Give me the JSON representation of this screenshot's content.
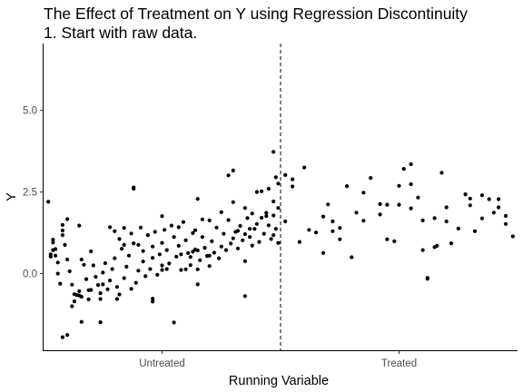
{
  "chart_data": {
    "type": "scatter",
    "title": "The Effect of Treatment on Y using Regression Discontinuity",
    "subtitle": "1. Start with raw data.",
    "xlabel": "Running Variable",
    "ylabel": "Y",
    "x_tick_labels": [
      "Untreated",
      "Treated"
    ],
    "y_ticks": [
      0.0,
      2.5,
      5.0
    ],
    "y_tick_labels": [
      "0.0",
      "2.5",
      "5.0"
    ],
    "xlim": [
      -1,
      1
    ],
    "ylim": [
      -2.35,
      7.05
    ],
    "cutoff": 0,
    "grid": false,
    "legend": "none",
    "point_color": "#000000",
    "series": [
      {
        "points": [
          [
            -0.97,
            0.59
          ],
          [
            -0.97,
            0.52
          ],
          [
            -0.96,
            0.72
          ],
          [
            -0.96,
            1.04
          ],
          [
            -0.96,
            0.95
          ],
          [
            -0.95,
            0.75
          ],
          [
            -0.95,
            0.55
          ],
          [
            -0.94,
            0.34
          ],
          [
            -0.94,
            0.0
          ],
          [
            -0.93,
            -0.31
          ],
          [
            -0.92,
            1.49
          ],
          [
            -0.92,
            1.32
          ],
          [
            -0.92,
            1.18
          ],
          [
            -0.91,
            0.88
          ],
          [
            -0.9,
            0.43
          ],
          [
            -0.89,
            0.07
          ],
          [
            -0.88,
            -0.34
          ],
          [
            -0.87,
            -0.63
          ],
          [
            -0.87,
            -0.85
          ],
          [
            -0.86,
            -0.66
          ],
          [
            -0.85,
            -0.54
          ],
          [
            -0.84,
            -0.71
          ],
          [
            -0.84,
            0.43
          ],
          [
            -0.83,
            0.27
          ],
          [
            -0.82,
            -0.17
          ],
          [
            -0.81,
            -0.51
          ],
          [
            -0.81,
            -0.79
          ],
          [
            -0.8,
            0.68
          ],
          [
            -0.79,
            0.25
          ],
          [
            -0.78,
            -0.1
          ],
          [
            -0.77,
            -0.35
          ],
          [
            -0.76,
            -0.6
          ],
          [
            -0.76,
            -0.78
          ],
          [
            -0.75,
            0.03
          ],
          [
            -0.74,
            0.32
          ],
          [
            -0.73,
            -0.48
          ],
          [
            -0.72,
            -0.21
          ],
          [
            -0.71,
            0.14
          ],
          [
            -0.7,
            0.47
          ],
          [
            -0.69,
            -0.41
          ],
          [
            -0.68,
            -0.64
          ],
          [
            -0.68,
            1.06
          ],
          [
            -0.67,
            0.76
          ],
          [
            -0.66,
            -0.14
          ],
          [
            -0.65,
            0.21
          ],
          [
            -0.64,
            0.55
          ],
          [
            -0.63,
            -0.47
          ],
          [
            -0.63,
            1.23
          ],
          [
            -0.62,
            0.93
          ],
          [
            -0.61,
            -0.28
          ],
          [
            -0.6,
            0.09
          ],
          [
            -0.59,
            1.41
          ],
          [
            -0.58,
            0.37
          ],
          [
            -0.58,
            0.69
          ],
          [
            -0.57,
            -0.08
          ],
          [
            -0.56,
            1.18
          ],
          [
            -0.55,
            0.14
          ],
          [
            -0.54,
            0.48
          ],
          [
            -0.54,
            0.83
          ],
          [
            -0.53,
            1.28
          ],
          [
            -0.52,
            -0.04
          ],
          [
            -0.51,
            0.59
          ],
          [
            -0.5,
            0.25
          ],
          [
            -0.5,
            0.94
          ],
          [
            -0.49,
            1.34
          ],
          [
            -0.48,
            0.72
          ],
          [
            -0.47,
            0.31
          ],
          [
            -0.46,
            1.47
          ],
          [
            -0.45,
            1.12
          ],
          [
            -0.44,
            0.52
          ],
          [
            -0.43,
            0.85
          ],
          [
            -0.42,
            0.11
          ],
          [
            -0.41,
            1.58
          ],
          [
            -0.4,
            1.02
          ],
          [
            -0.39,
            0.63
          ],
          [
            -0.38,
            0.26
          ],
          [
            -0.37,
            1.24
          ],
          [
            -0.36,
            0.74
          ],
          [
            -0.35,
            -0.33
          ],
          [
            -0.34,
            0.41
          ],
          [
            -0.33,
            1.66
          ],
          [
            -0.33,
            1.12
          ],
          [
            -0.32,
            0.79
          ],
          [
            -0.31,
            0.54
          ],
          [
            -0.3,
            0.23
          ],
          [
            -0.29,
            0.99
          ],
          [
            -0.28,
            0.64
          ],
          [
            -0.27,
            1.41
          ],
          [
            -0.26,
            0.47
          ],
          [
            -0.25,
            0.83
          ],
          [
            -0.24,
            1.22
          ],
          [
            -0.23,
            0.72
          ],
          [
            -0.22,
            1.64
          ],
          [
            -0.21,
            0.92
          ],
          [
            -0.2,
            1.08
          ],
          [
            -0.19,
            1.28
          ],
          [
            -0.18,
            0.77
          ],
          [
            -0.17,
            1.46
          ],
          [
            -0.16,
            1.02
          ],
          [
            -0.15,
            1.21
          ],
          [
            -0.14,
            1.7
          ],
          [
            -0.13,
            1.12
          ],
          [
            -0.12,
            0.86
          ],
          [
            -0.11,
            1.37
          ],
          [
            -0.1,
            1.52
          ],
          [
            -0.09,
            0.97
          ],
          [
            -0.08,
            1.71
          ],
          [
            -0.07,
            1.22
          ],
          [
            -0.06,
            1.86
          ],
          [
            -0.05,
            1.48
          ],
          [
            -0.04,
            1.06
          ],
          [
            -0.03,
            2.21
          ],
          [
            -0.03,
            1.78
          ],
          [
            -0.02,
            1.37
          ],
          [
            -0.01,
            0.94
          ],
          [
            -0.01,
            2.01
          ],
          [
            -0.98,
            2.2
          ],
          [
            -0.9,
            1.67
          ],
          [
            -0.85,
            1.47
          ],
          [
            -0.72,
            1.42
          ],
          [
            -0.7,
            1.3
          ],
          [
            -0.66,
            1.4
          ],
          [
            -0.62,
            2.64
          ],
          [
            -0.62,
            2.6
          ],
          [
            -0.54,
            -0.77
          ],
          [
            -0.54,
            -0.86
          ],
          [
            -0.5,
            1.76
          ],
          [
            -0.48,
            0.14
          ],
          [
            -0.45,
            -1.5
          ],
          [
            -0.42,
            0.59
          ],
          [
            -0.38,
            0.51
          ],
          [
            -0.37,
            0.67
          ],
          [
            -0.36,
            1.33
          ],
          [
            -0.35,
            2.29
          ],
          [
            -0.35,
            0.71
          ],
          [
            -0.3,
            0.55
          ],
          [
            -0.22,
            3.01
          ],
          [
            -0.2,
            3.16
          ],
          [
            -0.18,
            1.31
          ],
          [
            -0.15,
            0.38
          ],
          [
            -0.13,
            1.37
          ],
          [
            -0.12,
            1.84
          ],
          [
            -0.08,
            2.52
          ],
          [
            -0.06,
            1.76
          ],
          [
            -0.03,
            3.73
          ],
          [
            -0.02,
            2.95
          ],
          [
            -0.15,
            -0.69
          ],
          [
            -0.88,
            -1.0
          ],
          [
            -0.84,
            -1.48
          ],
          [
            -0.76,
            -1.49
          ],
          [
            -0.92,
            -1.95
          ],
          [
            -0.9,
            -1.88
          ],
          [
            -0.85,
            -0.67
          ],
          [
            -0.8,
            -0.5
          ],
          [
            -0.75,
            -0.33
          ],
          [
            -0.69,
            -0.78
          ],
          [
            -0.66,
            0.88
          ],
          [
            -0.6,
            0.88
          ],
          [
            -0.5,
            0.11
          ],
          [
            -0.43,
            1.42
          ],
          [
            -0.4,
            0.13
          ],
          [
            -0.35,
            0.13
          ],
          [
            -0.3,
            1.63
          ],
          [
            -0.25,
            1.88
          ],
          [
            -0.2,
            2.19
          ],
          [
            -0.15,
            2.01
          ],
          [
            -0.1,
            2.5
          ],
          [
            -0.05,
            2.6
          ],
          [
            -0.03,
            1.18
          ],
          [
            -0.01,
            2.76
          ],
          [
            0.02,
            3.02
          ],
          [
            0.05,
            2.89
          ],
          [
            0.05,
            2.67
          ],
          [
            0.1,
            3.25
          ],
          [
            0.12,
            1.34
          ],
          [
            0.18,
            1.75
          ],
          [
            0.2,
            2.12
          ],
          [
            0.22,
            1.6
          ],
          [
            0.25,
            1.4
          ],
          [
            0.28,
            2.68
          ],
          [
            0.32,
            1.87
          ],
          [
            0.35,
            2.48
          ],
          [
            0.38,
            2.93
          ],
          [
            0.42,
            2.13
          ],
          [
            0.45,
            2.11
          ],
          [
            0.5,
            2.11
          ],
          [
            0.52,
            3.21
          ],
          [
            0.55,
            3.35
          ],
          [
            0.58,
            2.33
          ],
          [
            0.6,
            1.63
          ],
          [
            0.62,
            -0.13
          ],
          [
            0.62,
            -0.16
          ],
          [
            0.65,
            1.7
          ],
          [
            0.66,
            0.85
          ],
          [
            0.68,
            3.09
          ],
          [
            0.7,
            2.03
          ],
          [
            0.72,
            0.93
          ],
          [
            0.75,
            1.38
          ],
          [
            0.78,
            2.43
          ],
          [
            0.8,
            2.09
          ],
          [
            0.82,
            1.3
          ],
          [
            0.85,
            1.69
          ],
          [
            0.88,
            2.28
          ],
          [
            0.9,
            1.87
          ],
          [
            0.92,
            2.03
          ],
          [
            0.95,
            1.52
          ],
          [
            0.98,
            1.14
          ],
          [
            0.45,
            1.05
          ],
          [
            0.5,
            2.69
          ],
          [
            0.55,
            2.74
          ],
          [
            0.48,
            0.99
          ],
          [
            0.42,
            1.81
          ],
          [
            0.3,
            0.5
          ],
          [
            0.25,
            1.05
          ],
          [
            0.15,
            1.26
          ],
          [
            0.08,
            0.97
          ],
          [
            0.02,
            1.6
          ],
          [
            0.22,
            1.3
          ],
          [
            0.35,
            1.62
          ],
          [
            0.6,
            0.72
          ],
          [
            0.7,
            1.6
          ],
          [
            0.8,
            2.3
          ],
          [
            0.85,
            2.4
          ],
          [
            0.92,
            2.28
          ],
          [
            0.95,
            1.77
          ],
          [
            0.65,
            0.81
          ],
          [
            0.55,
            2.0
          ],
          [
            0.18,
            0.63
          ]
        ]
      }
    ]
  }
}
